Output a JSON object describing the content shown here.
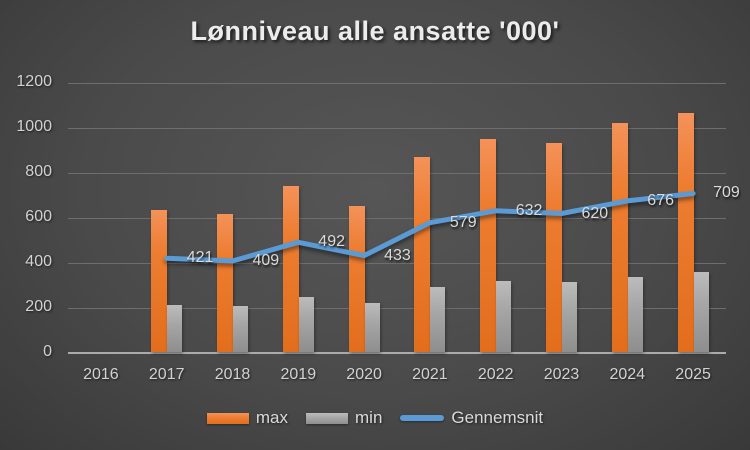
{
  "chart_data": {
    "type": "bar",
    "subtype": "grouped-bars-with-line-overlay",
    "title": "Lønniveau alle ansatte '000'",
    "categories": [
      "2016",
      "2017",
      "2018",
      "2019",
      "2020",
      "2021",
      "2022",
      "2023",
      "2024",
      "2025"
    ],
    "series": [
      {
        "name": "max",
        "type": "bar",
        "color": "#ED7D31",
        "values": [
          null,
          632,
          615,
          739,
          650,
          868,
          948,
          929,
          1017,
          1063
        ]
      },
      {
        "name": "min",
        "type": "bar",
        "color": "#A6A6A6",
        "values": [
          null,
          210,
          203,
          245,
          216,
          290,
          316,
          311,
          335,
          355
        ]
      },
      {
        "name": "Gennemsnit",
        "type": "line",
        "color": "#5B9BD5",
        "values": [
          null,
          421,
          409,
          492,
          433,
          579,
          632,
          620,
          676,
          709
        ],
        "data_labels": [
          "",
          "421",
          "409",
          "492",
          "433",
          "579",
          "632",
          "620",
          "676",
          "709"
        ]
      }
    ],
    "xlabel": "",
    "ylabel": "",
    "ylim": [
      0,
      1200
    ],
    "yticks": [
      0,
      200,
      400,
      600,
      800,
      1000,
      1200
    ],
    "grid": "horizontal",
    "legend_position": "bottom",
    "background": "dark-gray-radial-gradient",
    "colors": {
      "background_center": "#4f4f4f",
      "background_edge": "#1a1a1a",
      "gridline": "#6e6e6e",
      "axis_line": "#ababab",
      "tick_label": "#d2d2d2",
      "title": "#ececec",
      "data_label": "#dadada"
    }
  }
}
